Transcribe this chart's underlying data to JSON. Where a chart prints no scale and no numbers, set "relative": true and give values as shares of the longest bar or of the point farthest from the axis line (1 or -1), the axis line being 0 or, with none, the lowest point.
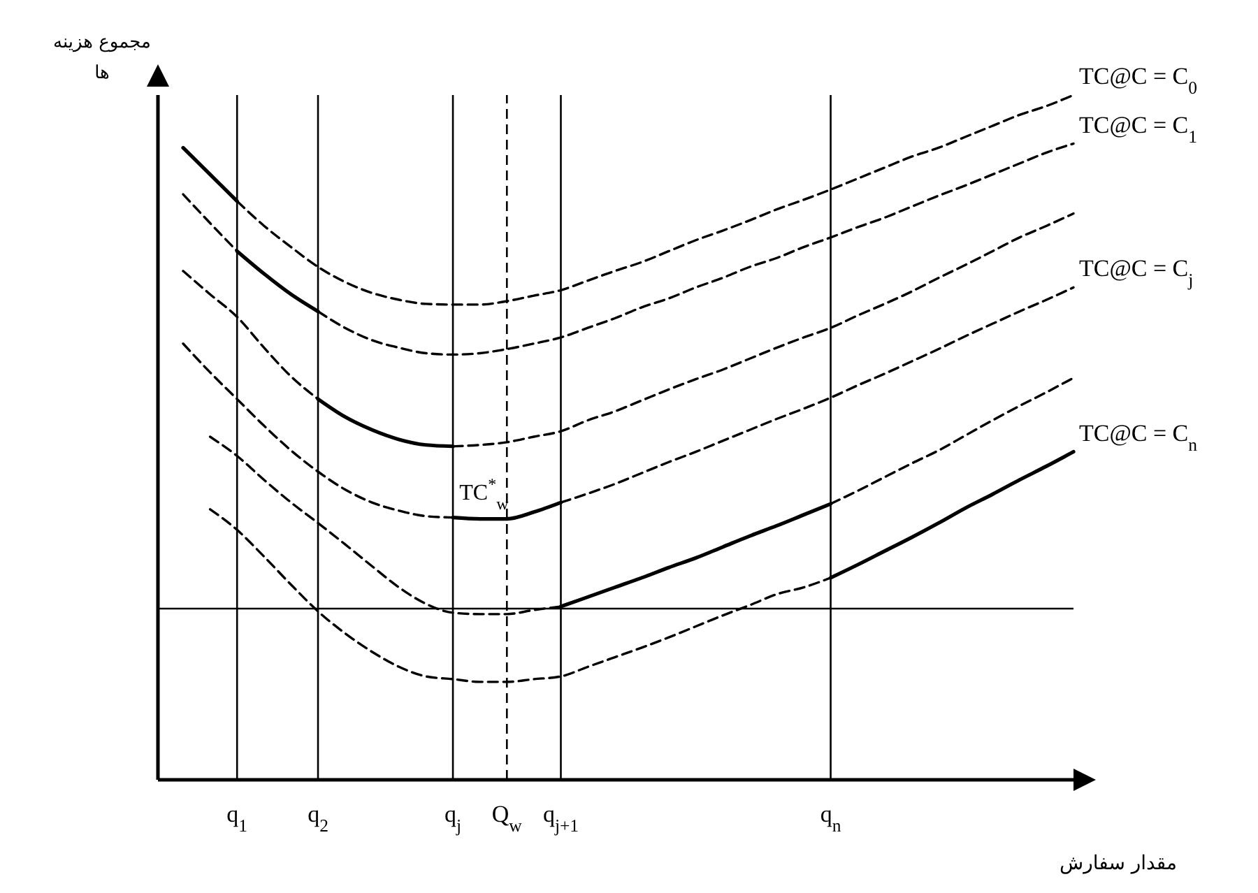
{
  "chart_data": {
    "type": "line",
    "relative": true,
    "xlabel": "مقدار سفارش",
    "ylabel": "مجموع هزینه ها",
    "categories": [
      null,
      null,
      "q$_{1}$",
      null,
      null,
      "q$_{2}$",
      null,
      null,
      null,
      null,
      "q$_{j}$",
      null,
      "Q$_{w}$",
      null,
      "q$_{j+1}$",
      null,
      null,
      null,
      null,
      null,
      null,
      null,
      null,
      null,
      "q$_{n}$",
      null,
      null,
      null,
      null,
      null,
      null,
      null,
      null,
      null
    ],
    "series": [
      {
        "name": "TC@C = C$_{0}$",
        "line_style": "dashed",
        "color": "#000000",
        "values": [
          null,
          null,
          0.845,
          0.809,
          0.778,
          0.749,
          0.727,
          0.711,
          0.701,
          0.695,
          0.694,
          0.694,
          0.699,
          0.707,
          0.715,
          0.729,
          0.743,
          0.756,
          0.772,
          0.788,
          0.802,
          0.817,
          0.833,
          0.847,
          0.862,
          0.878,
          0.894,
          0.91,
          0.923,
          0.939,
          0.955,
          0.971,
          0.984,
          1
        ]
      },
      {
        "line_style": "solid",
        "color": "#000000",
        "values": [
          0.923,
          0.884,
          0.845,
          null,
          null,
          null,
          null,
          null,
          null,
          null,
          null,
          null,
          null,
          null,
          null,
          null,
          null,
          null,
          null,
          null,
          null,
          null,
          null,
          null,
          null,
          null,
          null,
          null,
          null,
          null,
          null,
          null,
          null,
          null
        ]
      },
      {
        "line_style": "dashed",
        "color": "#000000",
        "values": [
          0.855,
          0.813,
          0.772,
          null,
          null,
          null,
          null,
          null,
          null,
          null,
          null,
          null,
          null,
          null,
          null,
          null,
          null,
          null,
          null,
          null,
          null,
          null,
          null,
          null,
          null,
          null,
          null,
          null,
          null,
          null,
          null,
          null,
          null,
          null
        ]
      },
      {
        "line_style": "solid",
        "color": "#000000",
        "values": [
          null,
          null,
          0.772,
          0.739,
          0.709,
          0.684,
          null,
          null,
          null,
          null,
          null,
          null,
          null,
          null,
          null,
          null,
          null,
          null,
          null,
          null,
          null,
          null,
          null,
          null,
          null,
          null,
          null,
          null,
          null,
          null,
          null,
          null,
          null,
          null
        ]
      },
      {
        "name": "TC@C = C$_{1}$",
        "line_style": "dashed",
        "color": "#000000",
        "values": [
          null,
          null,
          null,
          null,
          null,
          0.684,
          0.66,
          0.642,
          0.631,
          0.623,
          0.621,
          0.623,
          0.629,
          0.637,
          0.646,
          0.66,
          0.674,
          0.69,
          0.703,
          0.719,
          0.733,
          0.749,
          0.762,
          0.778,
          0.792,
          0.807,
          0.821,
          0.837,
          0.853,
          0.868,
          0.884,
          0.9,
          0.916,
          0.929
        ]
      },
      {
        "line_style": "dashed",
        "color": "#000000",
        "values": [
          0.743,
          0.709,
          0.676,
          0.631,
          0.589,
          0.556,
          null,
          null,
          null,
          null,
          null,
          null,
          null,
          null,
          null,
          null,
          null,
          null,
          null,
          null,
          null,
          null,
          null,
          null,
          null,
          null,
          null,
          null,
          null,
          null,
          null,
          null,
          null,
          null
        ]
      },
      {
        "line_style": "solid",
        "color": "#000000",
        "values": [
          null,
          null,
          null,
          null,
          null,
          0.556,
          0.53,
          0.511,
          0.497,
          0.489,
          0.487,
          null,
          null,
          null,
          null,
          null,
          null,
          null,
          null,
          null,
          null,
          null,
          null,
          null,
          null,
          null,
          null,
          null,
          null,
          null,
          null,
          null,
          null,
          null
        ]
      },
      {
        "line_style": "dashed",
        "color": "#000000",
        "values": [
          null,
          null,
          null,
          null,
          null,
          null,
          null,
          null,
          null,
          null,
          0.487,
          0.489,
          0.493,
          0.501,
          0.509,
          0.525,
          0.538,
          0.554,
          0.57,
          0.585,
          0.599,
          0.615,
          0.631,
          0.646,
          0.66,
          0.678,
          0.695,
          0.713,
          0.733,
          0.752,
          0.772,
          0.792,
          0.809,
          0.827
        ]
      },
      {
        "line_style": "dashed",
        "color": "#000000",
        "values": [
          0.637,
          0.595,
          0.556,
          0.517,
          0.481,
          0.45,
          0.424,
          0.405,
          0.393,
          0.385,
          0.383,
          null,
          null,
          null,
          null,
          null,
          null,
          null,
          null,
          null,
          null,
          null,
          null,
          null,
          null,
          null,
          null,
          null,
          null,
          null,
          null,
          null,
          null,
          null
        ]
      },
      {
        "line_style": "solid",
        "color": "#000000",
        "values": [
          null,
          null,
          null,
          null,
          null,
          null,
          null,
          null,
          null,
          null,
          0.383,
          0.381,
          0.381,
          0.391,
          0.405,
          null,
          null,
          null,
          null,
          null,
          null,
          null,
          null,
          null,
          null,
          null,
          null,
          null,
          null,
          null,
          null,
          null,
          null,
          null
        ]
      },
      {
        "name": "TC@C = C$_{j}$",
        "line_style": "dashed",
        "color": "#000000",
        "values": [
          null,
          null,
          null,
          null,
          null,
          null,
          null,
          null,
          null,
          null,
          null,
          null,
          null,
          null,
          0.405,
          0.418,
          0.432,
          0.448,
          0.464,
          0.479,
          0.495,
          0.511,
          0.527,
          0.542,
          0.558,
          0.576,
          0.593,
          0.611,
          0.629,
          0.648,
          0.666,
          0.684,
          0.701,
          0.719
        ]
      },
      {
        "line_style": "dashed",
        "color": "#000000",
        "values": [
          null,
          0.501,
          0.473,
          0.438,
          0.405,
          0.375,
          0.344,
          0.312,
          0.281,
          0.257,
          0.244,
          0.242,
          0.242,
          0.248,
          0.253,
          null,
          null,
          null,
          null,
          null,
          null,
          null,
          null,
          null,
          null,
          null,
          null,
          null,
          null,
          null,
          null,
          null,
          null,
          null
        ]
      },
      {
        "line_style": "solid",
        "color": "#000000",
        "values": [
          null,
          null,
          null,
          null,
          null,
          null,
          null,
          null,
          null,
          null,
          null,
          null,
          null,
          null,
          0.253,
          0.267,
          0.281,
          0.295,
          0.31,
          0.324,
          0.34,
          0.356,
          0.371,
          0.387,
          0.403,
          null,
          null,
          null,
          null,
          null,
          null,
          null,
          null,
          null
        ]
      },
      {
        "line_style": "dashed",
        "color": "#000000",
        "values": [
          null,
          null,
          null,
          null,
          null,
          null,
          null,
          null,
          null,
          null,
          null,
          null,
          null,
          null,
          null,
          null,
          null,
          null,
          null,
          null,
          null,
          null,
          null,
          null,
          0.403,
          0.422,
          0.442,
          0.462,
          0.481,
          0.503,
          0.525,
          0.546,
          0.566,
          0.587
        ]
      },
      {
        "line_style": "dashed",
        "color": "#000000",
        "values": [
          null,
          0.395,
          0.365,
          0.326,
          0.285,
          0.246,
          0.214,
          0.187,
          0.165,
          0.151,
          0.147,
          0.143,
          0.143,
          0.147,
          0.151,
          0.165,
          0.179,
          0.193,
          0.208,
          0.224,
          0.24,
          0.255,
          0.271,
          0.281,
          0.295,
          null,
          null,
          null,
          null,
          null,
          null,
          null,
          null,
          null
        ]
      },
      {
        "name": "TC@C = C$_{n}$",
        "line_style": "solid",
        "color": "#000000",
        "values": [
          null,
          null,
          null,
          null,
          null,
          null,
          null,
          null,
          null,
          null,
          null,
          null,
          null,
          null,
          null,
          null,
          null,
          null,
          null,
          null,
          null,
          null,
          null,
          null,
          0.295,
          0.314,
          0.334,
          0.354,
          0.375,
          0.397,
          0.417,
          0.438,
          0.458,
          0.479
        ]
      }
    ],
    "ref_lines": [
      {
        "axis": "x",
        "value": "q$_{1}$",
        "color": "#000000",
        "line_style": "solid"
      },
      {
        "axis": "x",
        "value": "q$_{2}$",
        "color": "#000000",
        "line_style": "solid"
      },
      {
        "axis": "x",
        "value": "q$_{j}$",
        "color": "#000000",
        "line_style": "solid"
      },
      {
        "axis": "x",
        "value": "Q$_{w}$",
        "color": "#000000",
        "line_style": "dashed"
      },
      {
        "axis": "x",
        "value": "q$_{j+1}$",
        "color": "#000000",
        "line_style": "solid"
      },
      {
        "axis": "x",
        "value": "q$_{n}$",
        "color": "#000000",
        "line_style": "solid"
      },
      {
        "axis": "y",
        "value": 0.25,
        "color": "#000000",
        "line_style": "solid"
      }
    ],
    "annotations": [
      {
        "text": "TC$^{*}$$_{w}$",
        "x": "Q$_{w}$",
        "y": 0.381
      }
    ]
  }
}
